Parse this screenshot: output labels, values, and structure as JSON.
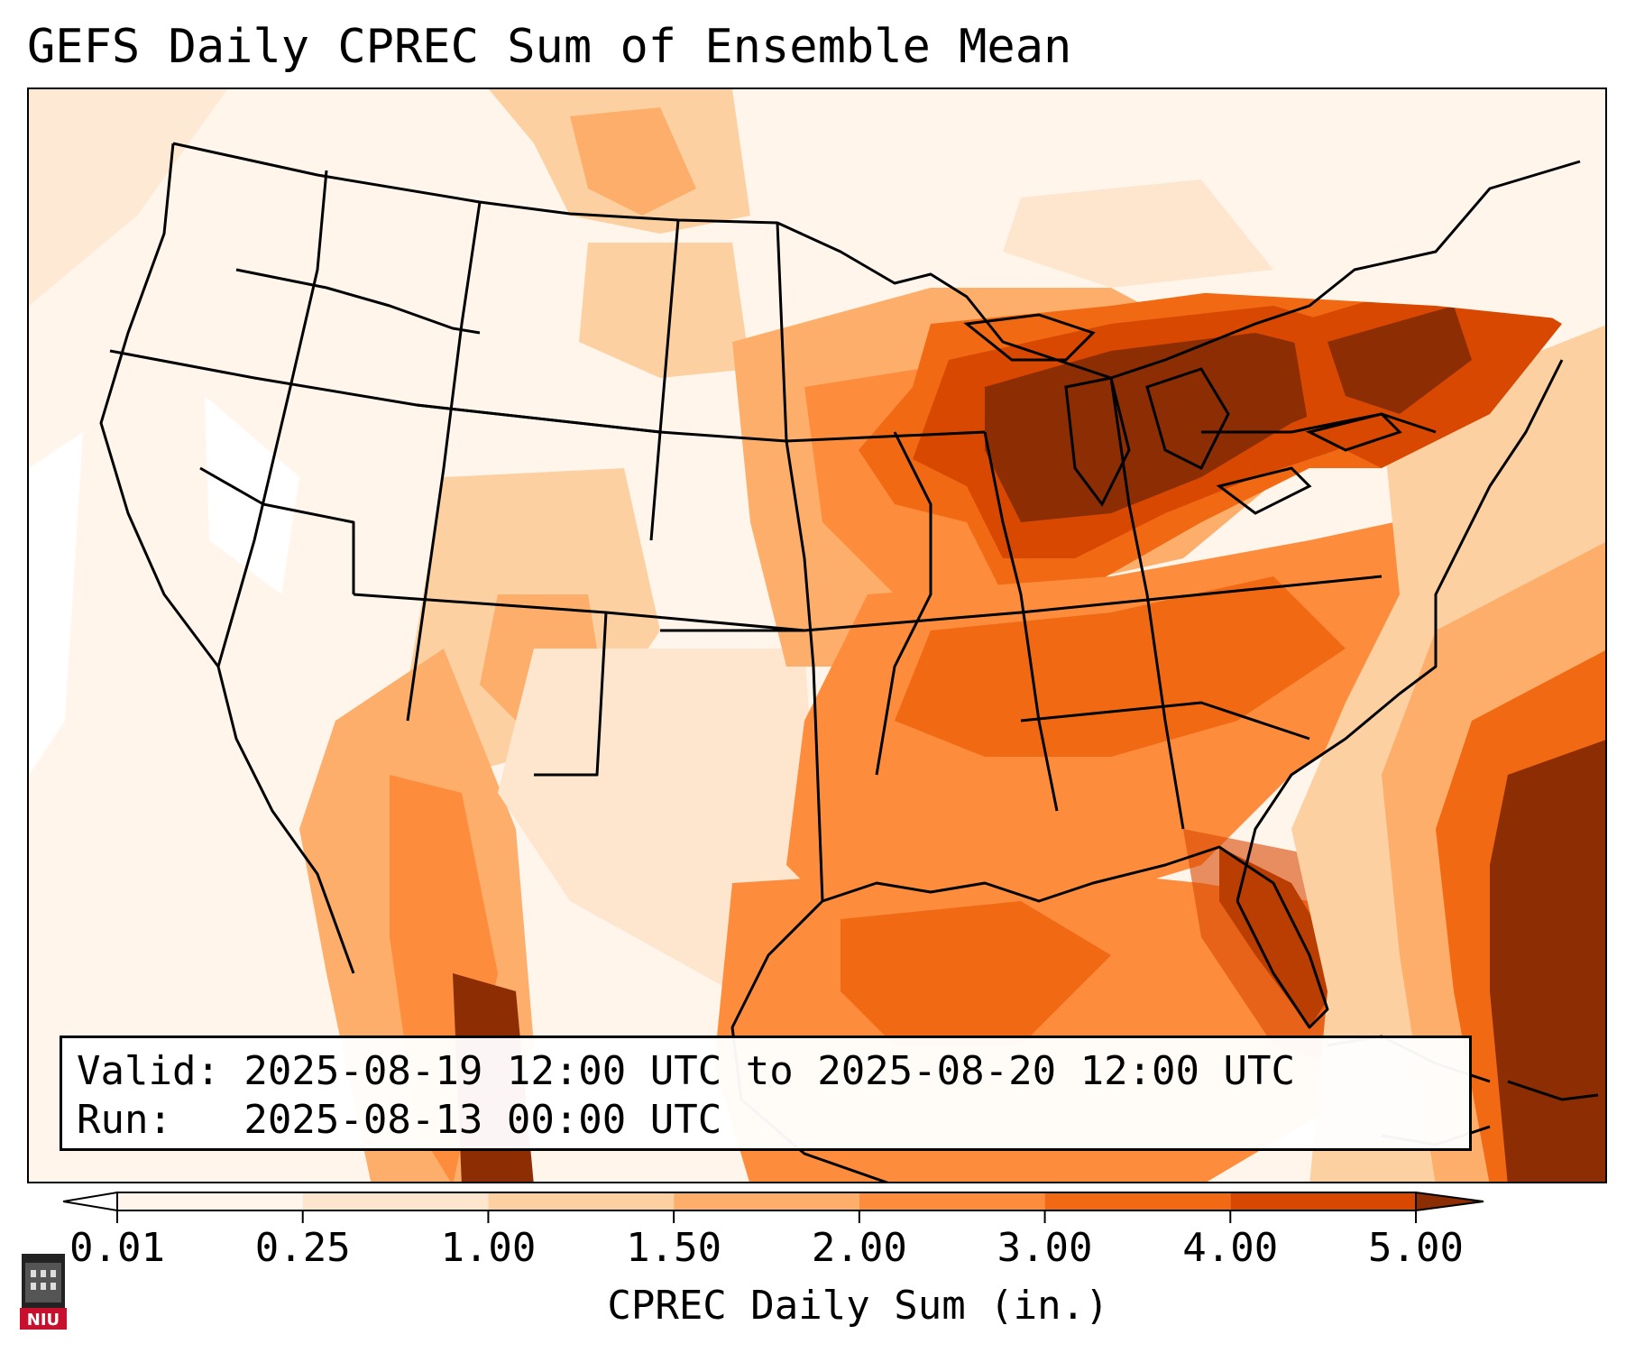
{
  "title": "GEFS Daily CPREC Sum of Ensemble Mean",
  "info": {
    "valid_line": "Valid: 2025-08-19 12:00 UTC to 2025-08-20 12:00 UTC",
    "run_line": "Run:   2025-08-13 00:00 UTC"
  },
  "colorbar": {
    "label": "CPREC Daily Sum (in.)",
    "ticks": [
      "0.01",
      "0.25",
      "1.00",
      "1.50",
      "2.00",
      "3.00",
      "4.00",
      "5.00"
    ],
    "colors": [
      "#fff5eb",
      "#fee6ce",
      "#fdd0a2",
      "#fdae6b",
      "#fd8d3c",
      "#f16913",
      "#d94801",
      "#8c2d04"
    ],
    "extend": "both"
  },
  "logo": {
    "text": "NIU",
    "color": "#c8102e"
  },
  "map": {
    "region": "Contiguous United States, Mexico, Caribbean",
    "field": "CPREC"
  }
}
